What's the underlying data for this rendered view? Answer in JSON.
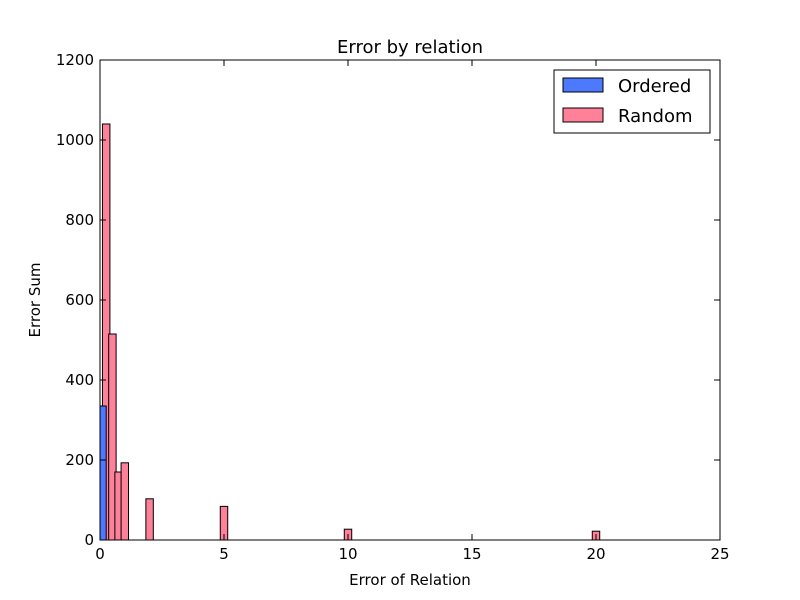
{
  "chart_data": {
    "type": "bar",
    "title": "Error by relation",
    "xlabel": "Error of Relation",
    "ylabel": "Error Sum",
    "xlim": [
      0,
      25
    ],
    "ylim": [
      0,
      1200
    ],
    "xticks": [
      "0",
      "5",
      "10",
      "15",
      "20",
      "25"
    ],
    "yticks": [
      "0",
      "200",
      "400",
      "600",
      "800",
      "1000",
      "1200"
    ],
    "grid": false,
    "legend_position": "top-right",
    "series": [
      {
        "name": "Ordered",
        "color": "#4d79ff",
        "bars": [
          {
            "x": 0.1,
            "value": 335
          }
        ]
      },
      {
        "name": "Random",
        "color": "#ff8099",
        "bars": [
          {
            "x": 0.25,
            "value": 1040
          },
          {
            "x": 0.5,
            "value": 515
          },
          {
            "x": 0.75,
            "value": 170
          },
          {
            "x": 1.0,
            "value": 193
          },
          {
            "x": 2.0,
            "value": 103
          },
          {
            "x": 5.0,
            "value": 84
          },
          {
            "x": 10.0,
            "value": 27
          },
          {
            "x": 20.0,
            "value": 22
          }
        ]
      }
    ]
  }
}
